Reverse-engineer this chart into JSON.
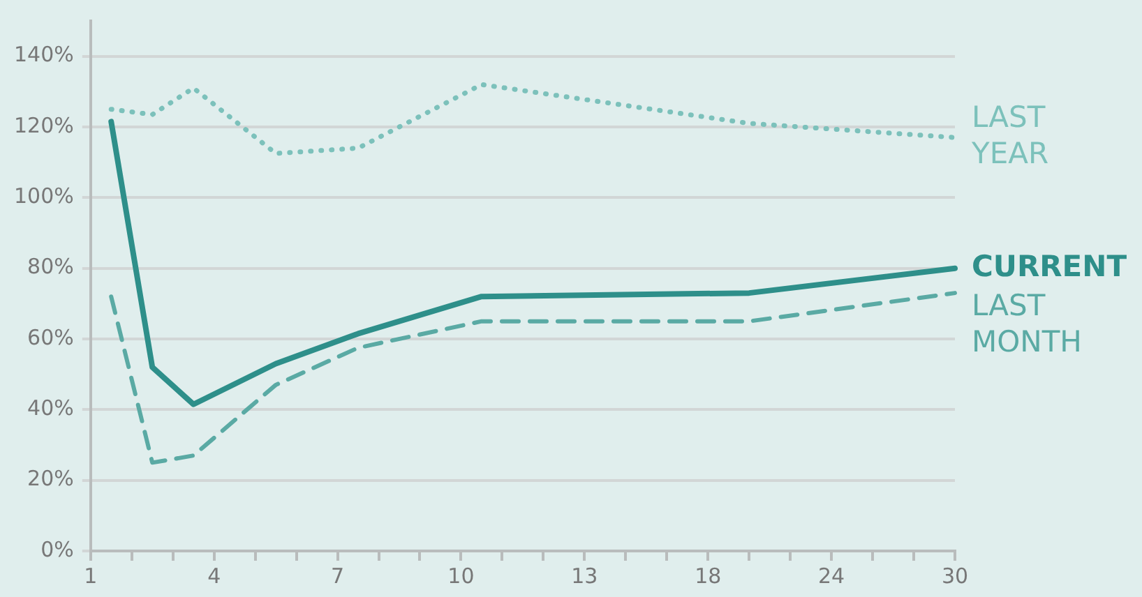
{
  "chart_data": {
    "type": "line",
    "categories": [
      "1",
      null,
      null,
      null,
      null,
      null,
      "4",
      null,
      null,
      null,
      null,
      null,
      "7",
      null,
      null,
      null,
      null,
      null,
      "10",
      null,
      null,
      null,
      null,
      null,
      "13",
      null,
      null,
      null,
      null,
      null,
      "18",
      null,
      null,
      null,
      null,
      null,
      "24",
      null,
      null,
      null,
      null,
      null,
      "30"
    ],
    "series": [
      {
        "name": "LAST YEAR",
        "color": "#7cc1bb",
        "line_style": "dotted",
        "values": [
          null,
          125,
          null,
          123.5,
          null,
          131,
          null,
          null,
          null,
          112.5,
          null,
          null,
          null,
          114,
          null,
          null,
          null,
          null,
          null,
          132,
          null,
          null,
          null,
          null,
          null,
          null,
          null,
          null,
          null,
          null,
          null,
          null,
          121,
          null,
          null,
          null,
          null,
          null,
          null,
          null,
          null,
          null,
          117
        ]
      },
      {
        "name": "CURRENT",
        "color": "#2e8f8a",
        "line_style": "solid",
        "values": [
          null,
          121.5,
          null,
          52,
          null,
          41.5,
          null,
          null,
          null,
          53,
          null,
          null,
          null,
          61.5,
          null,
          null,
          null,
          null,
          null,
          72,
          null,
          null,
          null,
          null,
          null,
          null,
          null,
          null,
          null,
          null,
          null,
          null,
          73,
          null,
          null,
          null,
          null,
          null,
          null,
          null,
          null,
          null,
          80
        ]
      },
      {
        "name": "LAST MONTH",
        "color": "#5aaaa4",
        "line_style": "dashed",
        "values": [
          null,
          72,
          null,
          25,
          null,
          27,
          null,
          null,
          null,
          47,
          null,
          null,
          null,
          57.5,
          null,
          null,
          null,
          null,
          null,
          65,
          null,
          null,
          null,
          null,
          null,
          null,
          null,
          null,
          null,
          null,
          null,
          null,
          65,
          null,
          null,
          null,
          null,
          null,
          null,
          null,
          null,
          null,
          73
        ]
      }
    ],
    "ylim": [
      0,
      150
    ],
    "yticks": [
      {
        "value": 0,
        "label": "0%"
      },
      {
        "value": 20,
        "label": "20%"
      },
      {
        "value": 40,
        "label": "40%"
      },
      {
        "value": 60,
        "label": "60%"
      },
      {
        "value": 80,
        "label": "80%"
      },
      {
        "value": 100,
        "label": "100%"
      },
      {
        "value": 120,
        "label": "120%"
      },
      {
        "value": 140,
        "label": "140%"
      }
    ],
    "grid": "y",
    "marker": "none",
    "legend": "right"
  }
}
